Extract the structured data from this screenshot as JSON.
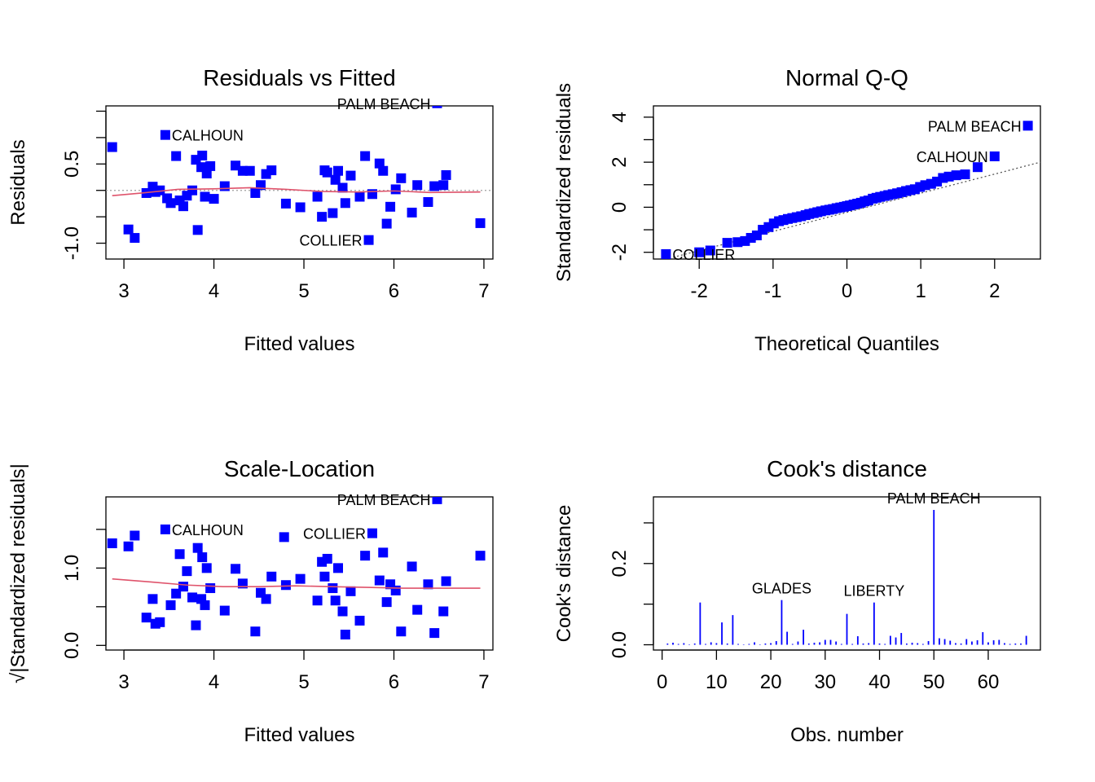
{
  "colors": {
    "points": "#0000ff",
    "smooth": "#df536b",
    "reference": "#9e9e9e",
    "needle": "#0000ff",
    "axis": "#000000"
  },
  "point_marker": "filled-square",
  "chart_data": [
    {
      "id": "residuals_vs_fitted",
      "type": "scatter",
      "title": "Residuals vs Fitted",
      "xlabel": "Fitted values",
      "ylabel": "Residuals",
      "xlim": [
        2.8,
        7.1
      ],
      "ylim": [
        -1.3,
        1.6
      ],
      "xticks": [
        3,
        4,
        5,
        6,
        7
      ],
      "yticks": [
        -1.0,
        -0.5,
        0.0,
        0.5,
        1.0,
        1.5
      ],
      "ytick_labels": [
        "-1.0",
        "",
        "",
        "0.5",
        "",
        ""
      ],
      "reference_line": {
        "type": "horizontal",
        "y": 0,
        "style": "dotted"
      },
      "smooth": {
        "x": [
          2.87,
          3.2,
          3.6,
          4.0,
          4.4,
          4.8,
          5.2,
          5.6,
          6.0,
          6.4,
          6.96
        ],
        "y": [
          -0.1,
          -0.05,
          0.02,
          0.03,
          0.05,
          0.02,
          -0.02,
          -0.03,
          -0.01,
          -0.04,
          -0.03
        ]
      },
      "points": {
        "x": [
          2.87,
          3.05,
          3.12,
          3.25,
          3.32,
          3.35,
          3.4,
          3.48,
          3.52,
          3.58,
          3.62,
          3.66,
          3.7,
          3.76,
          3.8,
          3.82,
          3.86,
          3.87,
          3.9,
          3.92,
          3.96,
          4.0,
          4.12,
          4.24,
          4.32,
          4.4,
          4.46,
          4.52,
          4.58,
          4.64,
          4.8,
          4.96,
          5.15,
          5.2,
          5.23,
          5.26,
          5.32,
          5.35,
          5.38,
          5.43,
          5.46,
          5.52,
          5.62,
          5.68,
          5.76,
          5.84,
          5.88,
          5.92,
          5.96,
          6.02,
          6.08,
          6.2,
          6.26,
          6.38,
          6.45,
          6.55,
          6.58,
          6.96,
          3.46,
          5.72,
          6.48
        ],
        "y": [
          0.82,
          -0.74,
          -0.9,
          -0.05,
          0.07,
          -0.03,
          0.0,
          -0.15,
          -0.24,
          0.65,
          -0.19,
          -0.3,
          -0.1,
          0.0,
          0.58,
          -0.75,
          0.44,
          0.66,
          -0.12,
          0.32,
          0.46,
          -0.16,
          0.08,
          0.47,
          0.37,
          0.37,
          -0.05,
          0.1,
          0.31,
          0.38,
          -0.25,
          -0.32,
          -0.12,
          -0.5,
          0.38,
          0.34,
          -0.43,
          0.2,
          0.37,
          0.05,
          -0.24,
          0.28,
          -0.12,
          0.65,
          -0.07,
          0.51,
          0.37,
          -0.63,
          -0.31,
          0.02,
          0.23,
          -0.42,
          0.1,
          -0.22,
          0.08,
          0.1,
          0.29,
          -0.62,
          1.05,
          -0.94,
          1.65
        ]
      },
      "labels": [
        {
          "text": "PALM BEACH",
          "x": 6.48,
          "y": 1.65,
          "side": "left"
        },
        {
          "text": "CALHOUN",
          "x": 3.46,
          "y": 1.05,
          "side": "right"
        },
        {
          "text": "COLLIER",
          "x": 5.72,
          "y": -0.94,
          "side": "left"
        }
      ]
    },
    {
      "id": "normal_qq",
      "type": "scatter",
      "title": "Normal Q-Q",
      "xlabel": "Theoretical Quantiles",
      "ylabel": "Standardized residuals",
      "xlim": [
        -2.62,
        2.62
      ],
      "ylim": [
        -2.3,
        4.5
      ],
      "xticks": [
        -2,
        -1,
        0,
        1,
        2
      ],
      "yticks": [
        -2,
        -1,
        0,
        1,
        2,
        3,
        4
      ],
      "ytick_labels": [
        "-2",
        "",
        "0",
        "",
        "2",
        "",
        "4"
      ],
      "reference_line": {
        "type": "line",
        "x": [
          -2.62,
          2.62
        ],
        "y": [
          -2.45,
          2.0
        ],
        "style": "dotted"
      },
      "points": {
        "x": [
          -2.45,
          -2.0,
          -1.85,
          -1.62,
          -1.48,
          -1.38,
          -1.3,
          -1.22,
          -1.14,
          -1.06,
          -0.99,
          -0.92,
          -0.86,
          -0.8,
          -0.74,
          -0.68,
          -0.62,
          -0.56,
          -0.51,
          -0.45,
          -0.4,
          -0.35,
          -0.29,
          -0.24,
          -0.19,
          -0.14,
          -0.09,
          -0.04,
          0.0,
          0.04,
          0.09,
          0.14,
          0.19,
          0.24,
          0.29,
          0.35,
          0.4,
          0.45,
          0.51,
          0.56,
          0.62,
          0.68,
          0.74,
          0.8,
          0.86,
          0.92,
          0.99,
          1.06,
          1.14,
          1.22,
          1.3,
          1.38,
          1.48,
          1.6,
          1.77,
          2.0,
          2.45
        ],
        "y": [
          -2.08,
          -2.0,
          -1.92,
          -1.58,
          -1.55,
          -1.5,
          -1.36,
          -1.25,
          -1.0,
          -0.88,
          -0.72,
          -0.62,
          -0.57,
          -0.52,
          -0.48,
          -0.44,
          -0.4,
          -0.35,
          -0.3,
          -0.26,
          -0.22,
          -0.18,
          -0.14,
          -0.11,
          -0.08,
          -0.04,
          -0.01,
          0.02,
          0.05,
          0.08,
          0.12,
          0.16,
          0.2,
          0.26,
          0.3,
          0.38,
          0.42,
          0.46,
          0.5,
          0.54,
          0.58,
          0.62,
          0.67,
          0.72,
          0.76,
          0.8,
          0.9,
          0.98,
          1.04,
          1.14,
          1.3,
          1.36,
          1.42,
          1.46,
          1.78,
          2.26,
          3.62
        ]
      },
      "labels": [
        {
          "text": "PALM BEACH",
          "x": 2.45,
          "y": 3.62,
          "side": "left"
        },
        {
          "text": "CALHOUN",
          "x": 2.0,
          "y": 2.26,
          "side": "left"
        },
        {
          "text": "COLLIER",
          "x": -2.45,
          "y": -2.08,
          "side": "right"
        }
      ]
    },
    {
      "id": "scale_location",
      "type": "scatter",
      "title": "Scale-Location",
      "xlabel": "Fitted values",
      "ylabel": "√|Standardized residuals|",
      "xlim": [
        2.8,
        7.1
      ],
      "ylim": [
        -0.06,
        1.92
      ],
      "xticks": [
        3,
        4,
        5,
        6,
        7
      ],
      "yticks": [
        0.0,
        0.5,
        1.0,
        1.5
      ],
      "ytick_labels": [
        "0.0",
        "",
        "1.0",
        ""
      ],
      "smooth": {
        "x": [
          2.87,
          3.3,
          3.7,
          4.1,
          4.5,
          4.9,
          5.3,
          5.7,
          6.1,
          6.5,
          6.96
        ],
        "y": [
          0.86,
          0.82,
          0.78,
          0.76,
          0.76,
          0.77,
          0.76,
          0.75,
          0.74,
          0.74,
          0.74
        ]
      },
      "points": {
        "x": [
          2.87,
          3.05,
          3.12,
          3.25,
          3.32,
          3.35,
          3.4,
          3.52,
          3.58,
          3.62,
          3.66,
          3.7,
          3.76,
          3.8,
          3.82,
          3.86,
          3.87,
          3.9,
          3.92,
          3.96,
          4.12,
          4.24,
          4.32,
          4.46,
          4.52,
          4.58,
          4.64,
          4.8,
          4.96,
          5.15,
          5.2,
          5.23,
          5.26,
          5.32,
          5.35,
          5.38,
          5.43,
          5.46,
          5.52,
          5.62,
          5.68,
          5.84,
          5.88,
          5.92,
          5.96,
          6.02,
          6.08,
          6.2,
          6.26,
          6.38,
          6.45,
          6.55,
          6.58,
          6.96,
          3.46,
          4.78,
          5.76,
          6.48
        ],
        "y": [
          1.32,
          1.28,
          1.42,
          0.36,
          0.6,
          0.28,
          0.3,
          0.52,
          0.67,
          1.18,
          0.76,
          0.96,
          0.62,
          0.26,
          1.26,
          0.6,
          1.14,
          0.52,
          1.0,
          0.74,
          0.45,
          0.99,
          0.8,
          0.18,
          0.68,
          0.6,
          0.89,
          0.78,
          0.86,
          0.58,
          1.08,
          0.89,
          1.12,
          0.74,
          0.58,
          1.0,
          0.44,
          0.14,
          0.7,
          0.32,
          1.16,
          0.84,
          1.2,
          0.56,
          0.79,
          0.71,
          0.18,
          1.02,
          0.46,
          0.79,
          0.16,
          0.44,
          0.83,
          1.16,
          1.5,
          1.4,
          1.45,
          1.89
        ]
      },
      "labels": [
        {
          "text": "PALM BEACH",
          "x": 6.48,
          "y": 1.89,
          "side": "left"
        },
        {
          "text": "CALHOUN",
          "x": 3.46,
          "y": 1.5,
          "side": "right"
        },
        {
          "text": "COLLIER",
          "x": 5.76,
          "y": 1.45,
          "side": "left"
        }
      ]
    },
    {
      "id": "cooks_distance",
      "type": "bar",
      "title": "Cook's distance",
      "xlabel": "Obs. number",
      "ylabel": "Cook's distance",
      "xlim": [
        -1.6,
        69.6
      ],
      "ylim": [
        -0.013,
        0.364
      ],
      "xticks": [
        0,
        10,
        20,
        30,
        40,
        50,
        60
      ],
      "yticks": [
        0.0,
        0.1,
        0.2,
        0.3
      ],
      "ytick_labels": [
        "0.0",
        "",
        "0.2",
        ""
      ],
      "x": [
        1,
        2,
        3,
        4,
        5,
        6,
        7,
        8,
        9,
        10,
        11,
        12,
        13,
        14,
        15,
        16,
        17,
        18,
        19,
        20,
        21,
        22,
        23,
        24,
        25,
        26,
        27,
        28,
        29,
        30,
        31,
        32,
        33,
        34,
        35,
        36,
        37,
        38,
        39,
        40,
        41,
        42,
        43,
        44,
        45,
        46,
        47,
        48,
        49,
        50,
        51,
        52,
        53,
        54,
        55,
        56,
        57,
        58,
        59,
        60,
        61,
        62,
        63,
        64,
        65,
        66,
        67
      ],
      "values": [
        0.003,
        0.005,
        0.002,
        0.004,
        0.001,
        0.003,
        0.104,
        0.002,
        0.006,
        0.004,
        0.055,
        0.003,
        0.073,
        0.002,
        0.001,
        0.002,
        0.006,
        0.001,
        0.003,
        0.004,
        0.009,
        0.11,
        0.032,
        0.002,
        0.008,
        0.037,
        0.003,
        0.005,
        0.006,
        0.012,
        0.012,
        0.008,
        0.002,
        0.076,
        0.002,
        0.021,
        0.003,
        0.004,
        0.104,
        0.003,
        0.002,
        0.022,
        0.018,
        0.029,
        0.003,
        0.005,
        0.004,
        0.002,
        0.009,
        0.332,
        0.016,
        0.014,
        0.01,
        0.004,
        0.003,
        0.014,
        0.008,
        0.011,
        0.031,
        0.006,
        0.011,
        0.012,
        0.004,
        0.002,
        0.003,
        0.003,
        0.022
      ],
      "labels": [
        {
          "text": "PALM BEACH",
          "x": 50,
          "y": 0.332
        },
        {
          "text": "GLADES",
          "x": 22,
          "y": 0.11
        },
        {
          "text": "LIBERTY",
          "x": 39,
          "y": 0.104
        }
      ]
    }
  ]
}
